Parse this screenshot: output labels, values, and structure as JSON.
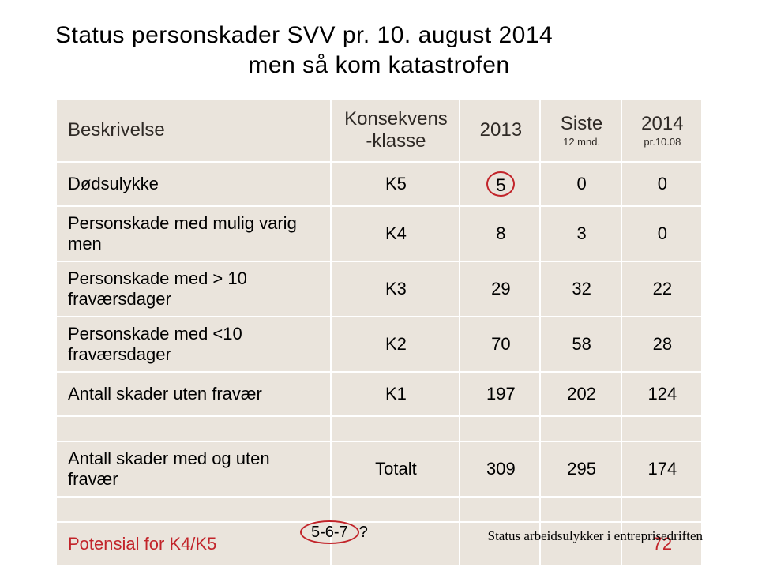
{
  "title": "Status personskader SVV pr. 10. august 2014",
  "subtitle": "men så kom katastrofen",
  "table": {
    "columns": {
      "beskrivelse": "Beskrivelse",
      "konsekvens": "Konsekvens\n-klasse",
      "y2013": "2013",
      "siste": "Siste",
      "siste_sub": "12 mnd.",
      "y2014": "2014",
      "y2014_sub": "pr.10.08"
    },
    "rows": [
      {
        "label": "Dødsulykke",
        "k": "K5",
        "v2013": "5",
        "siste": "0",
        "v2014": "0",
        "circle2013": true
      },
      {
        "label": "Personskade med mulig varig\nmen",
        "k": "K4",
        "v2013": "8",
        "siste": "3",
        "v2014": "0"
      },
      {
        "label": "Personskade med > 10\nfraværsdager",
        "k": "K3",
        "v2013": "29",
        "siste": "32",
        "v2014": "22"
      },
      {
        "label": "Personskade med <10\nfraværsdager",
        "k": "K2",
        "v2013": "70",
        "siste": "58",
        "v2014": "28"
      },
      {
        "label": "Antall skader uten fravær",
        "k": "K1",
        "v2013": "197",
        "siste": "202",
        "v2014": "124"
      },
      {
        "label": "Antall skader med og uten fravær",
        "k": "Totalt",
        "v2013": "309",
        "siste": "295",
        "v2014": "174"
      }
    ],
    "potensial": {
      "label": "Potensial for K4/K5",
      "value": "72"
    }
  },
  "footer": {
    "left_text": "5-6-7",
    "left_suffix": "?",
    "right": "Status arbeidsulykker i entreprisedriften"
  },
  "style": {
    "cell_bg": "#eae4dc",
    "border": "#ffffff",
    "accent": "#c2242a",
    "title_fontsize": 30,
    "header_fontsize": 24,
    "cell_fontsize": 22,
    "sub_fontsize": 13,
    "footnote_fontsize": 17
  }
}
